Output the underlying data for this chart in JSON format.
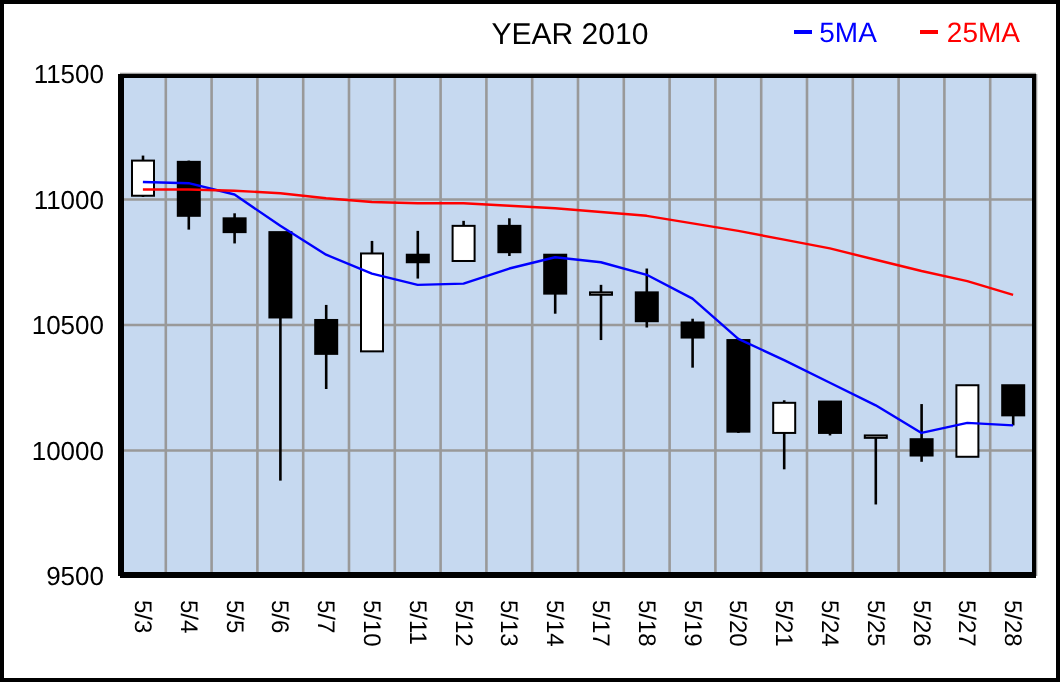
{
  "chart_data": {
    "type": "candlestick",
    "title": "YEAR 2010",
    "categories": [
      "5/3",
      "5/4",
      "5/5",
      "5/6",
      "5/7",
      "5/10",
      "5/11",
      "5/12",
      "5/13",
      "5/14",
      "5/17",
      "5/18",
      "5/19",
      "5/20",
      "5/21",
      "5/24",
      "5/25",
      "5/26",
      "5/27",
      "5/28"
    ],
    "ohlc": [
      [
        11015,
        11175,
        11010,
        11155
      ],
      [
        11150,
        11155,
        10880,
        10935
      ],
      [
        10925,
        10945,
        10825,
        10870
      ],
      [
        10870,
        10870,
        9880,
        10530
      ],
      [
        10520,
        10580,
        10245,
        10385
      ],
      [
        10395,
        10835,
        10395,
        10785
      ],
      [
        10780,
        10875,
        10685,
        10750
      ],
      [
        10755,
        10915,
        10755,
        10895
      ],
      [
        10895,
        10925,
        10775,
        10790
      ],
      [
        10780,
        10780,
        10545,
        10625
      ],
      [
        10625,
        10660,
        10440,
        10630
      ],
      [
        10630,
        10725,
        10490,
        10515
      ],
      [
        10510,
        10525,
        10330,
        10450
      ],
      [
        10440,
        10440,
        10070,
        10075
      ],
      [
        10070,
        10200,
        9925,
        10190
      ],
      [
        10195,
        10195,
        10060,
        10070
      ],
      [
        10060,
        10060,
        9785,
        10060
      ],
      [
        10045,
        10185,
        9955,
        9980
      ],
      [
        9975,
        10260,
        9975,
        10260
      ],
      [
        10260,
        10260,
        10100,
        10140
      ]
    ],
    "series": [
      {
        "type": "line",
        "name": "5MA",
        "color": "#0000ff",
        "values": [
          11070,
          11065,
          11020,
          10895,
          10780,
          10705,
          10660,
          10665,
          10725,
          10770,
          10750,
          10700,
          10605,
          10445,
          10360,
          10270,
          10180,
          10070,
          10110,
          10100
        ]
      },
      {
        "type": "line",
        "name": "25MA",
        "color": "#ff0000",
        "values": [
          11040,
          11040,
          11035,
          11025,
          11005,
          10990,
          10985,
          10985,
          10975,
          10965,
          10950,
          10935,
          10905,
          10875,
          10840,
          10805,
          10760,
          10715,
          10675,
          10620
        ]
      }
    ],
    "ylim": [
      9500,
      11500
    ],
    "yticks": [
      9500,
      10000,
      10500,
      11000,
      11500
    ],
    "grid": true,
    "legend": "top right"
  }
}
